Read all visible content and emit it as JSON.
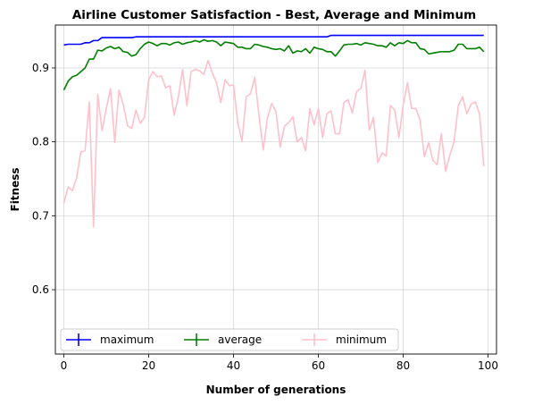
{
  "chart_data": {
    "type": "line",
    "title": "Airline Customer Satisfaction - Best, Average and Minimum",
    "xlabel": "Number of generations",
    "ylabel": "Fitness",
    "xlim": [
      -2,
      102
    ],
    "ylim": [
      0.513,
      0.958
    ],
    "x_ticks": [
      0,
      20,
      40,
      60,
      80,
      100
    ],
    "y_ticks": [
      0.6,
      0.7,
      0.8,
      0.9
    ],
    "y_tick_labels": [
      "0.6",
      "0.7",
      "0.8",
      "0.9"
    ],
    "grid": true,
    "legend_position": "lower-left",
    "series": [
      {
        "name": "maximum",
        "color": "#0000ff",
        "values": [
          0.931,
          0.932,
          0.932,
          0.932,
          0.932,
          0.934,
          0.934,
          0.937,
          0.937,
          0.941,
          0.941,
          0.941,
          0.941,
          0.941,
          0.941,
          0.941,
          0.941,
          0.942,
          0.942,
          0.942,
          0.942,
          0.942,
          0.942,
          0.942,
          0.942,
          0.942,
          0.942,
          0.942,
          0.942,
          0.942,
          0.942,
          0.942,
          0.942,
          0.942,
          0.942,
          0.942,
          0.942,
          0.942,
          0.942,
          0.942,
          0.942,
          0.942,
          0.942,
          0.942,
          0.942,
          0.942,
          0.942,
          0.942,
          0.942,
          0.942,
          0.942,
          0.942,
          0.942,
          0.942,
          0.942,
          0.942,
          0.942,
          0.942,
          0.942,
          0.942,
          0.942,
          0.942,
          0.942,
          0.944,
          0.944,
          0.944,
          0.944,
          0.944,
          0.944,
          0.944,
          0.944,
          0.944,
          0.944,
          0.944,
          0.944,
          0.944,
          0.944,
          0.944,
          0.944,
          0.944,
          0.944,
          0.944,
          0.944,
          0.944,
          0.944,
          0.944,
          0.944,
          0.944,
          0.944,
          0.944,
          0.944,
          0.944,
          0.944,
          0.944,
          0.944,
          0.944,
          0.944,
          0.944,
          0.944,
          0.944
        ]
      },
      {
        "name": "average",
        "color": "#008000",
        "values": [
          0.87,
          0.882,
          0.888,
          0.89,
          0.895,
          0.9,
          0.912,
          0.912,
          0.924,
          0.923,
          0.927,
          0.929,
          0.926,
          0.928,
          0.922,
          0.921,
          0.916,
          0.918,
          0.926,
          0.932,
          0.935,
          0.933,
          0.93,
          0.933,
          0.933,
          0.931,
          0.934,
          0.935,
          0.932,
          0.934,
          0.935,
          0.937,
          0.935,
          0.938,
          0.936,
          0.937,
          0.935,
          0.93,
          0.935,
          0.934,
          0.933,
          0.928,
          0.928,
          0.926,
          0.926,
          0.932,
          0.931,
          0.929,
          0.928,
          0.926,
          0.925,
          0.926,
          0.923,
          0.93,
          0.92,
          0.923,
          0.922,
          0.926,
          0.92,
          0.928,
          0.926,
          0.925,
          0.922,
          0.922,
          0.916,
          0.923,
          0.931,
          0.932,
          0.932,
          0.933,
          0.931,
          0.934,
          0.933,
          0.932,
          0.93,
          0.93,
          0.928,
          0.934,
          0.93,
          0.934,
          0.933,
          0.937,
          0.934,
          0.934,
          0.926,
          0.925,
          0.919,
          0.92,
          0.921,
          0.922,
          0.922,
          0.922,
          0.924,
          0.932,
          0.932,
          0.926,
          0.926,
          0.926,
          0.928,
          0.922
        ]
      },
      {
        "name": "minimum",
        "color": "#ffc0cb",
        "values": [
          0.717,
          0.739,
          0.734,
          0.751,
          0.786,
          0.788,
          0.854,
          0.685,
          0.864,
          0.815,
          0.845,
          0.872,
          0.799,
          0.87,
          0.85,
          0.822,
          0.818,
          0.843,
          0.825,
          0.833,
          0.884,
          0.895,
          0.888,
          0.889,
          0.873,
          0.876,
          0.836,
          0.861,
          0.898,
          0.849,
          0.895,
          0.898,
          0.896,
          0.891,
          0.91,
          0.893,
          0.88,
          0.853,
          0.884,
          0.876,
          0.877,
          0.826,
          0.801,
          0.861,
          0.865,
          0.887,
          0.836,
          0.789,
          0.832,
          0.852,
          0.841,
          0.793,
          0.821,
          0.826,
          0.834,
          0.8,
          0.806,
          0.788,
          0.845,
          0.823,
          0.845,
          0.806,
          0.838,
          0.842,
          0.811,
          0.811,
          0.853,
          0.857,
          0.839,
          0.868,
          0.872,
          0.897,
          0.816,
          0.833,
          0.772,
          0.785,
          0.781,
          0.849,
          0.843,
          0.806,
          0.85,
          0.88,
          0.845,
          0.845,
          0.829,
          0.78,
          0.799,
          0.775,
          0.769,
          0.811,
          0.76,
          0.782,
          0.8,
          0.849,
          0.861,
          0.838,
          0.851,
          0.854,
          0.838,
          0.767
        ]
      }
    ]
  }
}
